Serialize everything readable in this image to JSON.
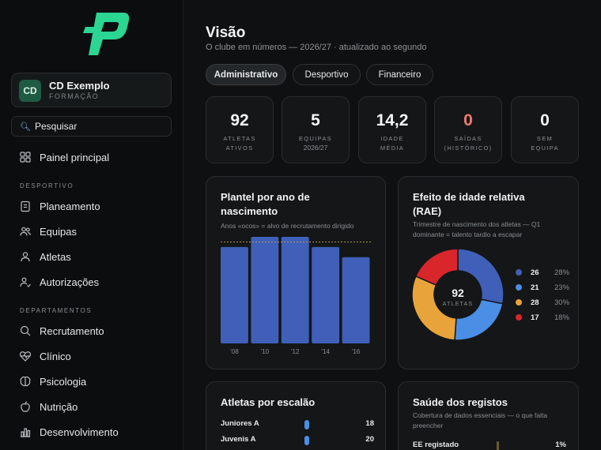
{
  "sidebar": {
    "club": {
      "initials": "CD",
      "name": "CD Exemplo",
      "subtitle": "FORMAÇÃO"
    },
    "search_label": "Pesquisar",
    "items": [
      {
        "label": "Painel principal",
        "icon": "grid-icon"
      },
      {
        "label": "Planeamento",
        "icon": "clipboard-icon"
      },
      {
        "label": "Equipas",
        "icon": "users-icon"
      },
      {
        "label": "Atletas",
        "icon": "user-icon"
      },
      {
        "label": "Autorizações",
        "icon": "user-check-icon"
      },
      {
        "label": "Recrutamento",
        "icon": "search-icon"
      },
      {
        "label": "Clínico",
        "icon": "heart-pulse-icon"
      },
      {
        "label": "Psicologia",
        "icon": "brain-icon"
      },
      {
        "label": "Nutrição",
        "icon": "apple-icon"
      },
      {
        "label": "Desenvolvimento",
        "icon": "bar-chart-icon"
      }
    ],
    "sections": {
      "desportivo": "DESPORTIVO",
      "departamentos": "DEPARTAMENTOS"
    }
  },
  "header": {
    "title": "Visão",
    "subtitle": "O clube em números — 2026/27 · atualizado ao segundo"
  },
  "tabs": [
    {
      "label": "Administrativo",
      "active": true
    },
    {
      "label": "Desportivo",
      "active": false
    },
    {
      "label": "Financeiro",
      "active": false
    }
  ],
  "stats": [
    {
      "value": "92",
      "label": "ATLETAS\nATIVOS",
      "sub": ""
    },
    {
      "value": "5",
      "label": "EQUIPAS",
      "sub": "2026/27"
    },
    {
      "value": "14,2",
      "label": "IDADE\nMÉDIA",
      "sub": ""
    },
    {
      "value": "0",
      "label": "SAÍDAS\n(HISTÓRICO)",
      "sub": "",
      "color": "#f07b6f"
    },
    {
      "value": "0",
      "label": "SEM\nEQUIPA",
      "sub": ""
    }
  ],
  "plantel": {
    "title": "Plantel por ano de nascimento",
    "subtitle": "Anos «ocos» = alvo de recrutamento dirigido",
    "chart_data": {
      "type": "bar",
      "categories": [
        "'08",
        "'10",
        "'12",
        "'14",
        "'16"
      ],
      "values": [
        19,
        21,
        21,
        19,
        17
      ],
      "ylim": [
        0,
        21
      ],
      "target_line": 20,
      "color": "#3f5fb8"
    }
  },
  "rae": {
    "title": "Efeito de idade relativa (RAE)",
    "subtitle": "Trimestre de nascimento dos atletas — Q1 dominante = talento tardio a escapar",
    "center_value": "92",
    "center_label": "ATLETAS",
    "chart_data": {
      "type": "pie",
      "values": [
        26,
        21,
        28,
        17
      ],
      "percents": [
        "28%",
        "23%",
        "30%",
        "18%"
      ],
      "colors": [
        "#3f5fb8",
        "#4a8ee6",
        "#e8a33a",
        "#d8262b"
      ]
    }
  },
  "escalao": {
    "title": "Atletas por escalão",
    "rows": [
      {
        "name": "Juniores A",
        "value": "18"
      },
      {
        "name": "Juvenis A",
        "value": "20"
      }
    ]
  },
  "saude": {
    "title": "Saúde dos registos",
    "subtitle": "Cobertura de dados essenciais — o que falta preencher",
    "rows": [
      {
        "name": "EE registado",
        "value": "1%"
      }
    ]
  }
}
